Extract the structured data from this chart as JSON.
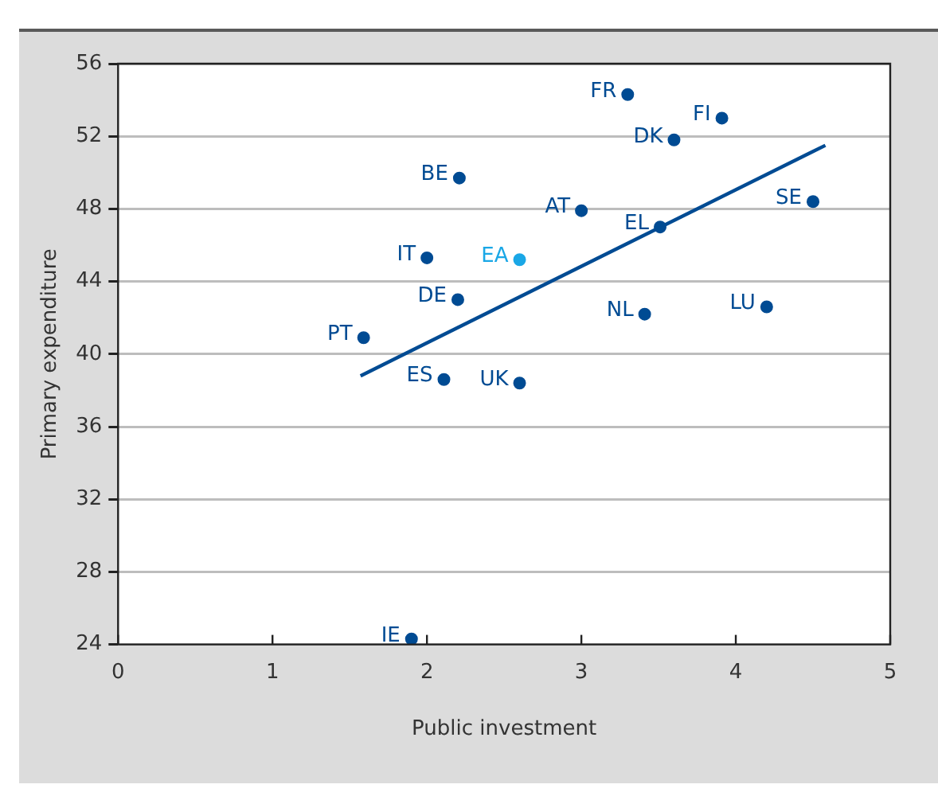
{
  "chart_data": {
    "type": "scatter",
    "xlabel": "Public investment",
    "ylabel": "Primary expenditure",
    "xlim": [
      0,
      5
    ],
    "xticks": [
      0,
      1,
      2,
      3,
      4,
      5
    ],
    "ylim": [
      24,
      56
    ],
    "yticks": [
      24,
      28,
      32,
      36,
      40,
      44,
      48,
      52,
      56
    ],
    "grid": "y",
    "legend": false,
    "marker": "circle",
    "series": [
      {
        "name": "FR",
        "color": "#004b93",
        "x": [
          3.3
        ],
        "values": [
          54.3
        ]
      },
      {
        "name": "FI",
        "color": "#004b93",
        "x": [
          3.91
        ],
        "values": [
          53.0
        ]
      },
      {
        "name": "DK",
        "color": "#004b93",
        "x": [
          3.6
        ],
        "values": [
          51.8
        ]
      },
      {
        "name": "BE",
        "color": "#004b93",
        "x": [
          2.21
        ],
        "values": [
          49.7
        ]
      },
      {
        "name": "SE",
        "color": "#004b93",
        "x": [
          4.5
        ],
        "values": [
          48.4
        ]
      },
      {
        "name": "AT",
        "color": "#004b93",
        "x": [
          3.0
        ],
        "values": [
          47.9
        ]
      },
      {
        "name": "EL",
        "color": "#004b93",
        "x": [
          3.51
        ],
        "values": [
          47.0
        ]
      },
      {
        "name": "IT",
        "color": "#004b93",
        "x": [
          2.0
        ],
        "values": [
          45.3
        ]
      },
      {
        "name": "EA",
        "color": "#1aa7e6",
        "x": [
          2.6
        ],
        "values": [
          45.2
        ]
      },
      {
        "name": "DE",
        "color": "#004b93",
        "x": [
          2.2
        ],
        "values": [
          43.0
        ]
      },
      {
        "name": "LU",
        "color": "#004b93",
        "x": [
          4.2
        ],
        "values": [
          42.6
        ]
      },
      {
        "name": "NL",
        "color": "#004b93",
        "x": [
          3.41
        ],
        "values": [
          42.2
        ]
      },
      {
        "name": "PT",
        "color": "#004b93",
        "x": [
          1.59
        ],
        "values": [
          40.9
        ]
      },
      {
        "name": "ES",
        "color": "#004b93",
        "x": [
          2.11
        ],
        "values": [
          38.6
        ]
      },
      {
        "name": "UK",
        "color": "#004b93",
        "x": [
          2.6
        ],
        "values": [
          38.4
        ]
      },
      {
        "name": "IE",
        "color": "#004b93",
        "x": [
          1.9
        ],
        "values": [
          24.3
        ]
      },
      {
        "type": "line",
        "marker": "none",
        "color": "#004b93",
        "x": [
          1.57,
          4.58
        ],
        "values": [
          38.8,
          51.5
        ]
      }
    ]
  }
}
